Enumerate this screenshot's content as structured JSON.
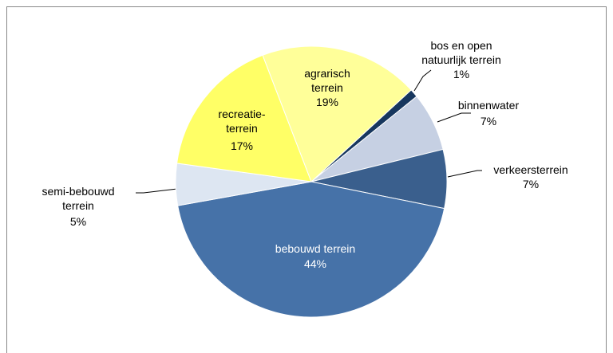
{
  "chart_data": {
    "type": "pie",
    "categories": [
      "bos en open\nnatuurlijk terrein",
      "binnenwater",
      "verkeersterrein",
      "bebouwd terrein",
      "semi-bebouwd\nterrein",
      "recreatie-\nterrein",
      "agrarisch\nterrein"
    ],
    "values": [
      1,
      7,
      7,
      44,
      5,
      17,
      19
    ],
    "value_labels": [
      "1%",
      "7%",
      "7%",
      "44%",
      "5%",
      "17%",
      "19%"
    ],
    "colors": [
      "#17375e",
      "#c6d0e3",
      "#3a5f8d",
      "#4672a8",
      "#dde6f2",
      "#ffff66",
      "#ffff99"
    ]
  }
}
